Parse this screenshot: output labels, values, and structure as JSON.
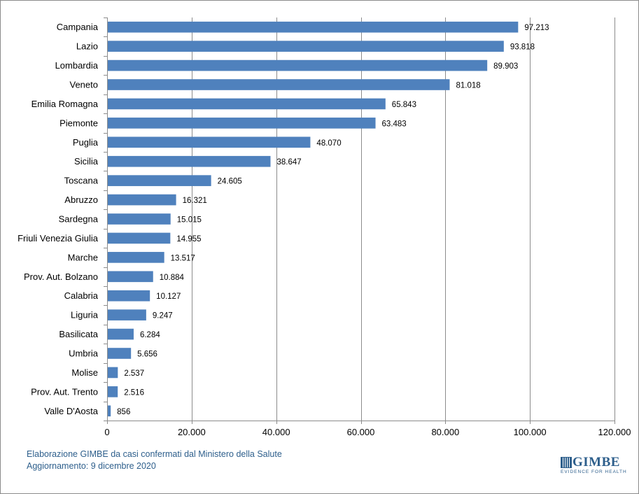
{
  "chart_data": {
    "type": "bar",
    "orientation": "horizontal",
    "categories": [
      "Campania",
      "Lazio",
      "Lombardia",
      "Veneto",
      "Emilia Romagna",
      "Piemonte",
      "Puglia",
      "Sicilia",
      "Toscana",
      "Abruzzo",
      "Sardegna",
      "Friuli Venezia Giulia",
      "Marche",
      "Prov. Aut. Bolzano",
      "Calabria",
      "Liguria",
      "Basilicata",
      "Umbria",
      "Molise",
      "Prov. Aut. Trento",
      "Valle D'Aosta"
    ],
    "values": [
      97213,
      93818,
      89903,
      81018,
      65843,
      63483,
      48070,
      38647,
      24605,
      16321,
      15015,
      14955,
      13517,
      10884,
      10127,
      9247,
      6284,
      5656,
      2537,
      2516,
      856
    ],
    "value_labels": [
      "97.213",
      "93.818",
      "89.903",
      "81.018",
      "65.843",
      "63.483",
      "48.070",
      "38.647",
      "24.605",
      "16.321",
      "15.015",
      "14.955",
      "13.517",
      "10.884",
      "10.127",
      "9.247",
      "6.284",
      "5.656",
      "2.537",
      "2.516",
      "856"
    ],
    "xlim": [
      0,
      120000
    ],
    "x_ticks": [
      0,
      20000,
      40000,
      60000,
      80000,
      100000,
      120000
    ],
    "x_tick_labels": [
      "0",
      "20.000",
      "40.000",
      "60.000",
      "80.000",
      "100.000",
      "120.000"
    ],
    "grid": "vertical",
    "bar_color": "#4f81bd",
    "title": "",
    "xlabel": "",
    "ylabel": ""
  },
  "footer": {
    "source": "Elaborazione GIMBE da casi confermati dal Ministero della Salute",
    "update": "Aggiornamento: 9 dicembre 2020"
  },
  "logo": {
    "name": "GIMBE",
    "tagline": "EVIDENCE FOR HEALTH",
    "color": "#2e5f8c"
  }
}
